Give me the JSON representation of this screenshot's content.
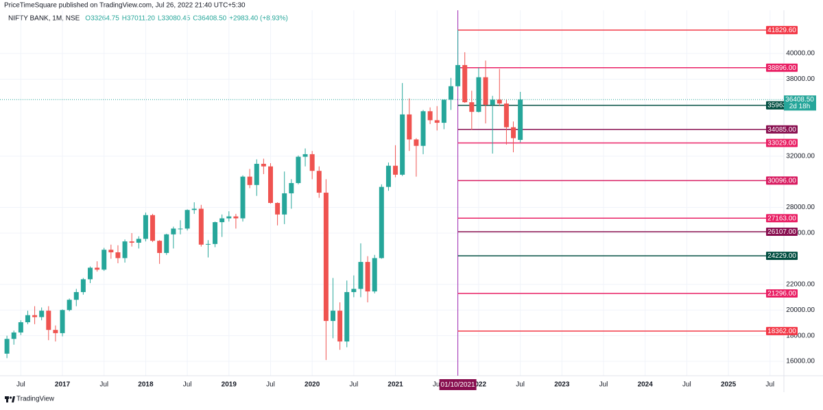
{
  "header": {
    "published": "PriceTimeSquare published on TradingView.com, Jul 26, 2022 21:40 UTC+5:30",
    "symbol": "NIFTY BANK, 1M, NSE",
    "open": "O33264.75",
    "high": "H37011.20",
    "low": "L33080.45",
    "close": "C36408.50",
    "change": "+2983.40 (+8.93%)"
  },
  "footer": {
    "brand": "TradingView"
  },
  "chart_data": {
    "type": "candlestick",
    "up_color": "#26a69a",
    "down_color": "#ef5350",
    "x": [
      "2016-05",
      "2016-06",
      "2016-07",
      "2016-08",
      "2016-09",
      "2016-10",
      "2016-11",
      "2016-12",
      "2017-01",
      "2017-02",
      "2017-03",
      "2017-04",
      "2017-05",
      "2017-06",
      "2017-07",
      "2017-08",
      "2017-09",
      "2017-10",
      "2017-11",
      "2017-12",
      "2018-01",
      "2018-02",
      "2018-03",
      "2018-04",
      "2018-05",
      "2018-06",
      "2018-07",
      "2018-08",
      "2018-09",
      "2018-10",
      "2018-11",
      "2018-12",
      "2019-01",
      "2019-02",
      "2019-03",
      "2019-04",
      "2019-05",
      "2019-06",
      "2019-07",
      "2019-08",
      "2019-09",
      "2019-10",
      "2019-11",
      "2019-12",
      "2020-01",
      "2020-02",
      "2020-03",
      "2020-04",
      "2020-05",
      "2020-06",
      "2020-07",
      "2020-08",
      "2020-09",
      "2020-10",
      "2020-11",
      "2020-12",
      "2021-01",
      "2021-02",
      "2021-03",
      "2021-04",
      "2021-05",
      "2021-06",
      "2021-07",
      "2021-08",
      "2021-09",
      "2021-10",
      "2021-11",
      "2021-12",
      "2022-01",
      "2022-02",
      "2022-03",
      "2022-04",
      "2022-05",
      "2022-06",
      "2022-07"
    ],
    "open": [
      16600,
      17750,
      18250,
      19050,
      19600,
      19450,
      19950,
      18450,
      18200,
      20000,
      20800,
      21400,
      22400,
      23300,
      23150,
      24700,
      24500,
      24050,
      25350,
      25250,
      25550,
      27400,
      25400,
      24450,
      25900,
      26350,
      26350,
      27800,
      27900,
      25100,
      25150,
      26850,
      27150,
      27300,
      27150,
      30400,
      29750,
      31400,
      31200,
      28350,
      27450,
      29100,
      29900,
      31950,
      32150,
      30850,
      29150,
      19150,
      19950,
      17550,
      21400,
      21650,
      23750,
      21450,
      24050,
      29600,
      31250,
      30550,
      35250,
      33300,
      32800,
      35500,
      34800,
      34600,
      36400,
      37450,
      39100,
      36200,
      35450,
      38150,
      36000,
      36400,
      36100,
      34250,
      33264.75
    ],
    "high": [
      18000,
      18400,
      19200,
      19950,
      20300,
      20200,
      20300,
      18800,
      20050,
      20900,
      21650,
      22500,
      23400,
      23800,
      24850,
      25100,
      25050,
      25500,
      26000,
      25750,
      27600,
      27500,
      25450,
      25950,
      26500,
      27000,
      27850,
      28400,
      28200,
      25450,
      26900,
      27450,
      27700,
      27500,
      30500,
      31000,
      31750,
      31800,
      31450,
      28400,
      30800,
      30200,
      32050,
      32600,
      32400,
      31200,
      30200,
      22500,
      20600,
      22300,
      22700,
      25200,
      24200,
      24300,
      29800,
      31500,
      32850,
      37700,
      36500,
      33400,
      35600,
      35800,
      35900,
      36400,
      38100,
      41850,
      40100,
      37100,
      38900,
      39450,
      36700,
      38800,
      36400,
      34700,
      37011.2
    ],
    "low": [
      16250,
      17300,
      18050,
      18900,
      18900,
      19200,
      17650,
      17550,
      17950,
      19900,
      20300,
      21200,
      22100,
      23000,
      23050,
      24000,
      23650,
      23700,
      24950,
      24800,
      25350,
      25300,
      23600,
      24300,
      24800,
      25900,
      26200,
      27500,
      24950,
      24100,
      24900,
      25700,
      26900,
      26350,
      26900,
      29500,
      28900,
      30600,
      28300,
      26600,
      26700,
      27900,
      29800,
      31200,
      30200,
      28750,
      16100,
      17800,
      16900,
      17100,
      21000,
      21000,
      20600,
      21300,
      24000,
      29300,
      30350,
      30450,
      32400,
      30400,
      32150,
      34500,
      34000,
      34100,
      35600,
      37400,
      36150,
      34050,
      35400,
      34550,
      32200,
      35900,
      32900,
      32300,
      33080.45
    ],
    "close": [
      17750,
      18250,
      19050,
      19600,
      19450,
      19950,
      18450,
      18200,
      20000,
      20800,
      21400,
      22400,
      23300,
      23150,
      24700,
      24500,
      24050,
      25350,
      25250,
      25550,
      27400,
      25400,
      24450,
      25900,
      26350,
      26350,
      27800,
      27900,
      25100,
      25150,
      26850,
      27150,
      27300,
      27150,
      30400,
      29750,
      31400,
      31200,
      28350,
      27450,
      29100,
      29900,
      31950,
      32150,
      30850,
      29150,
      19150,
      19950,
      17550,
      21400,
      21650,
      23750,
      21450,
      24050,
      29600,
      31250,
      30550,
      35250,
      33300,
      32800,
      35500,
      34800,
      34600,
      36400,
      37450,
      39100,
      36200,
      35450,
      38150,
      36000,
      36400,
      36100,
      34250,
      33400,
      36408.5
    ],
    "xlim": [
      "2016-04",
      "2025-09"
    ],
    "xticks": [
      {
        "value": "2016-07",
        "label": "Jul"
      },
      {
        "value": "2017-01",
        "label": "2017"
      },
      {
        "value": "2017-07",
        "label": "Jul"
      },
      {
        "value": "2018-01",
        "label": "2018"
      },
      {
        "value": "2018-07",
        "label": "Jul"
      },
      {
        "value": "2019-01",
        "label": "2019"
      },
      {
        "value": "2019-07",
        "label": "Jul"
      },
      {
        "value": "2020-01",
        "label": "2020"
      },
      {
        "value": "2020-07",
        "label": "Jul"
      },
      {
        "value": "2021-01",
        "label": "2021"
      },
      {
        "value": "2021-07",
        "label": "Jul"
      },
      {
        "value": "2022-01",
        "label": "2022"
      },
      {
        "value": "2022-07",
        "label": "Jul"
      },
      {
        "value": "2023-01",
        "label": "2023"
      },
      {
        "value": "2023-07",
        "label": "Jul"
      },
      {
        "value": "2024-01",
        "label": "2024"
      },
      {
        "value": "2024-07",
        "label": "Jul"
      },
      {
        "value": "2025-01",
        "label": "2025"
      },
      {
        "value": "2025-07",
        "label": "Jul"
      }
    ],
    "ylim": [
      14880,
      43370
    ],
    "yticks": [
      {
        "value": 16000,
        "label": "16000.00"
      },
      {
        "value": 18000,
        "label": "18000.00"
      },
      {
        "value": 20000,
        "label": "20000.00"
      },
      {
        "value": 22000,
        "label": "22000.00"
      },
      {
        "value": 26000,
        "label": "26000.00"
      },
      {
        "value": 28000,
        "label": "28000.00"
      },
      {
        "value": 32000,
        "label": "32000.00"
      },
      {
        "value": 38000,
        "label": "38000.00"
      },
      {
        "value": 40000,
        "label": "40000.00"
      }
    ],
    "grid": true,
    "last_price_label": "36408.50",
    "countdown": "2d 18h",
    "vline": {
      "x": "2021-10",
      "label": "01/10/2021",
      "color": "#9c27b0"
    },
    "levels": [
      {
        "value": 41829.6,
        "label": "41829.60",
        "color": "#f23645"
      },
      {
        "value": 38896,
        "label": "38896.00",
        "color": "#e91e63"
      },
      {
        "value": 35963,
        "label": "35963.00",
        "color": "#004d40"
      },
      {
        "value": 34085,
        "label": "34085.00",
        "color": "#880e4f"
      },
      {
        "value": 33029,
        "label": "33029.00",
        "color": "#e91e63"
      },
      {
        "value": 30096,
        "label": "30096.00",
        "color": "#d81b60"
      },
      {
        "value": 27163,
        "label": "27163.00",
        "color": "#e91e63"
      },
      {
        "value": 26107,
        "label": "26107.00",
        "color": "#880e4f"
      },
      {
        "value": 24229,
        "label": "24229.00",
        "color": "#004d40"
      },
      {
        "value": 21296,
        "label": "21296.00",
        "color": "#e91e63"
      },
      {
        "value": 18362,
        "label": "18362.00",
        "color": "#f23645"
      }
    ]
  }
}
